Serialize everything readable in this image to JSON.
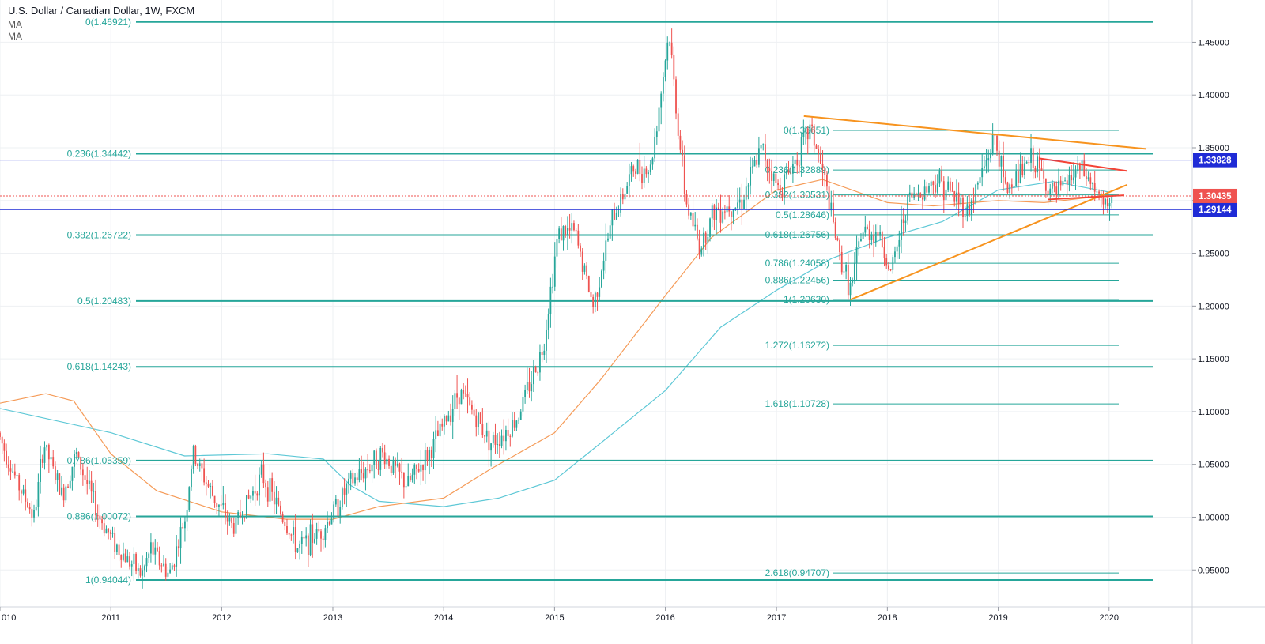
{
  "legend": {
    "title": "U.S. Dollar / Canadian Dollar, 1W, FXCM",
    "indicators": [
      "MA",
      "MA"
    ]
  },
  "chart_data": {
    "type": "candlestick",
    "symbol": "USDCAD",
    "interval": "1W",
    "ylim": [
      0.915,
      1.49
    ],
    "x_range": [
      "2010-01-01",
      "2020-10-01"
    ],
    "y_ticks": [
      "1.45000",
      "1.40000",
      "1.35000",
      "1.30000",
      "1.25000",
      "1.20000",
      "1.15000",
      "1.10000",
      "1.05000",
      "1.00000",
      "0.95000"
    ],
    "x_ticks": [
      {
        "label": "010",
        "date": "2010-01-01"
      },
      {
        "label": "2011",
        "date": "2011-01-01"
      },
      {
        "label": "2012",
        "date": "2012-01-01"
      },
      {
        "label": "2013",
        "date": "2013-01-01"
      },
      {
        "label": "2014",
        "date": "2014-01-01"
      },
      {
        "label": "2015",
        "date": "2015-01-01"
      },
      {
        "label": "2016",
        "date": "2016-01-01"
      },
      {
        "label": "2017",
        "date": "2017-01-01"
      },
      {
        "label": "2018",
        "date": "2018-01-01"
      },
      {
        "label": "2019",
        "date": "2019-01-01"
      },
      {
        "label": "2020",
        "date": "2020-01-01"
      }
    ],
    "price_path": [
      [
        "2010-01-01",
        1.08
      ],
      [
        "2010-03-10",
        1.03
      ],
      [
        "2010-05-01",
        1.0
      ],
      [
        "2010-06-01",
        1.07
      ],
      [
        "2010-08-01",
        1.02
      ],
      [
        "2010-09-15",
        1.06
      ],
      [
        "2010-12-01",
        1.0
      ],
      [
        "2011-02-01",
        0.97
      ],
      [
        "2011-04-20",
        0.945
      ],
      [
        "2011-05-20",
        0.97
      ],
      [
        "2011-07-20",
        0.945
      ],
      [
        "2011-09-10",
        1.0
      ],
      [
        "2011-10-05",
        1.06
      ],
      [
        "2011-12-10",
        1.02
      ],
      [
        "2012-02-15",
        0.99
      ],
      [
        "2012-05-20",
        1.04
      ],
      [
        "2012-09-15",
        0.97
      ],
      [
        "2012-12-10",
        0.99
      ],
      [
        "2013-03-01",
        1.03
      ],
      [
        "2013-06-20",
        1.06
      ],
      [
        "2013-09-10",
        1.03
      ],
      [
        "2013-12-01",
        1.065
      ],
      [
        "2014-03-01",
        1.12
      ],
      [
        "2014-06-15",
        1.07
      ],
      [
        "2014-09-01",
        1.09
      ],
      [
        "2014-12-01",
        1.16
      ],
      [
        "2015-01-20",
        1.27
      ],
      [
        "2015-03-15",
        1.27
      ],
      [
        "2015-05-15",
        1.2
      ],
      [
        "2015-07-15",
        1.28
      ],
      [
        "2015-09-25",
        1.33
      ],
      [
        "2015-11-20",
        1.33
      ],
      [
        "2016-01-20",
        1.46
      ],
      [
        "2016-02-15",
        1.38
      ],
      [
        "2016-03-15",
        1.3
      ],
      [
        "2016-05-01",
        1.255
      ],
      [
        "2016-06-15",
        1.29
      ],
      [
        "2016-09-15",
        1.3
      ],
      [
        "2016-11-20",
        1.35
      ],
      [
        "2017-01-15",
        1.31
      ],
      [
        "2017-03-15",
        1.34
      ],
      [
        "2017-05-01",
        1.37
      ],
      [
        "2017-06-15",
        1.32
      ],
      [
        "2017-08-01",
        1.25
      ],
      [
        "2017-09-10",
        1.215
      ],
      [
        "2017-10-15",
        1.27
      ],
      [
        "2017-12-10",
        1.27
      ],
      [
        "2018-01-20",
        1.23
      ],
      [
        "2018-03-15",
        1.3
      ],
      [
        "2018-06-25",
        1.32
      ],
      [
        "2018-10-01",
        1.29
      ],
      [
        "2018-12-28",
        1.36
      ],
      [
        "2019-02-01",
        1.31
      ],
      [
        "2019-05-01",
        1.34
      ],
      [
        "2019-06-15",
        1.315
      ],
      [
        "2019-07-15",
        1.305
      ],
      [
        "2019-10-01",
        1.33
      ],
      [
        "2019-11-15",
        1.315
      ],
      [
        "2019-12-25",
        1.29
      ],
      [
        "2020-01-10",
        1.305
      ]
    ],
    "moving_averages": [
      {
        "name": "MA",
        "color": "#5ec8d6",
        "points": [
          [
            "2010-01-01",
            1.103
          ],
          [
            "2011-01-01",
            1.08
          ],
          [
            "2011-09-01",
            1.058
          ],
          [
            "2012-06-01",
            1.06
          ],
          [
            "2012-12-01",
            1.055
          ],
          [
            "2013-03-01",
            1.03
          ],
          [
            "2013-06-01",
            1.015
          ],
          [
            "2014-01-01",
            1.01
          ],
          [
            "2014-07-01",
            1.018
          ],
          [
            "2015-01-01",
            1.035
          ],
          [
            "2015-06-01",
            1.07
          ],
          [
            "2016-01-01",
            1.12
          ],
          [
            "2016-07-01",
            1.18
          ],
          [
            "2017-01-01",
            1.215
          ],
          [
            "2017-07-01",
            1.245
          ],
          [
            "2018-01-01",
            1.265
          ],
          [
            "2018-07-01",
            1.28
          ],
          [
            "2019-01-01",
            1.31
          ],
          [
            "2019-07-01",
            1.318
          ],
          [
            "2020-01-01",
            1.308
          ]
        ]
      },
      {
        "name": "MA",
        "color": "#f59b58",
        "points": [
          [
            "2010-01-01",
            1.108
          ],
          [
            "2010-06-01",
            1.117
          ],
          [
            "2010-09-01",
            1.11
          ],
          [
            "2011-01-01",
            1.06
          ],
          [
            "2011-06-01",
            1.025
          ],
          [
            "2012-01-01",
            1.005
          ],
          [
            "2012-08-01",
            0.998
          ],
          [
            "2013-01-01",
            0.998
          ],
          [
            "2013-06-01",
            1.01
          ],
          [
            "2014-01-01",
            1.018
          ],
          [
            "2014-06-01",
            1.045
          ],
          [
            "2015-01-01",
            1.08
          ],
          [
            "2015-06-01",
            1.13
          ],
          [
            "2016-01-01",
            1.21
          ],
          [
            "2016-06-01",
            1.265
          ],
          [
            "2017-01-01",
            1.31
          ],
          [
            "2017-06-01",
            1.32
          ],
          [
            "2018-01-01",
            1.298
          ],
          [
            "2018-06-01",
            1.295
          ],
          [
            "2019-01-01",
            1.3
          ],
          [
            "2019-06-01",
            1.298
          ],
          [
            "2020-01-01",
            1.305
          ]
        ]
      }
    ],
    "fib_big": {
      "color": "#26a69a",
      "levels": [
        {
          "label": "0(1.46921)",
          "value": 1.46921
        },
        {
          "label": "0.236(1.34442)",
          "value": 1.34442
        },
        {
          "label": "0.382(1.26722)",
          "value": 1.26722
        },
        {
          "label": "0.5(1.20483)",
          "value": 1.20483
        },
        {
          "label": "0.618(1.14243)",
          "value": 1.14243
        },
        {
          "label": "0.786(1.05359)",
          "value": 1.05359
        },
        {
          "label": "0.886(1.00072)",
          "value": 1.00072
        },
        {
          "label": "1(0.94044)",
          "value": 0.94044
        }
      ]
    },
    "fib_small": {
      "color": "#26a69a",
      "levels": [
        {
          "label": "0(1.36651)",
          "value": 1.36651
        },
        {
          "label": "0.236(1.32889)",
          "value": 1.32889
        },
        {
          "label": "0.382(1.30531)",
          "value": 1.30531
        },
        {
          "label": "0.5(1.28646)",
          "value": 1.28646
        },
        {
          "label": "0.618(1.26756)",
          "value": 1.26756
        },
        {
          "label": "0.786(1.24058)",
          "value": 1.24058
        },
        {
          "label": "0.886(1.22456)",
          "value": 1.22456
        },
        {
          "label": "1(1.20630)",
          "value": 1.2063
        },
        {
          "label": "1.272(1.16272)",
          "value": 1.16272
        },
        {
          "label": "1.618(1.10728)",
          "value": 1.10728
        },
        {
          "label": "2.618(0.94707)",
          "value": 0.94707
        }
      ]
    },
    "horizontal_lines": [
      {
        "value": 1.33828,
        "label": "1.33828",
        "color": "#1f2bd6"
      },
      {
        "value": 1.29144,
        "label": "1.29144",
        "color": "#1f2bd6"
      }
    ],
    "current_price": {
      "value": 1.30435,
      "label": "1.30435",
      "color": "#ef5350"
    },
    "trendlines": [
      {
        "color": "#f7931e",
        "from": [
          "2017-04-01",
          1.38
        ],
        "to": [
          "2020-05-01",
          1.349
        ]
      },
      {
        "color": "#f7931e",
        "from": [
          "2017-09-01",
          1.206
        ],
        "to": [
          "2020-03-01",
          1.315
        ]
      },
      {
        "color": "#f44336",
        "from": [
          "2019-05-15",
          1.34
        ],
        "to": [
          "2020-03-01",
          1.328
        ]
      },
      {
        "color": "#f44336",
        "from": [
          "2019-06-15",
          1.301
        ],
        "to": [
          "2020-02-20",
          1.305
        ]
      }
    ],
    "colors": {
      "up": "#26a69a",
      "down": "#ef5350",
      "grid": "#eef0f3",
      "axis_text": "#131722"
    }
  }
}
